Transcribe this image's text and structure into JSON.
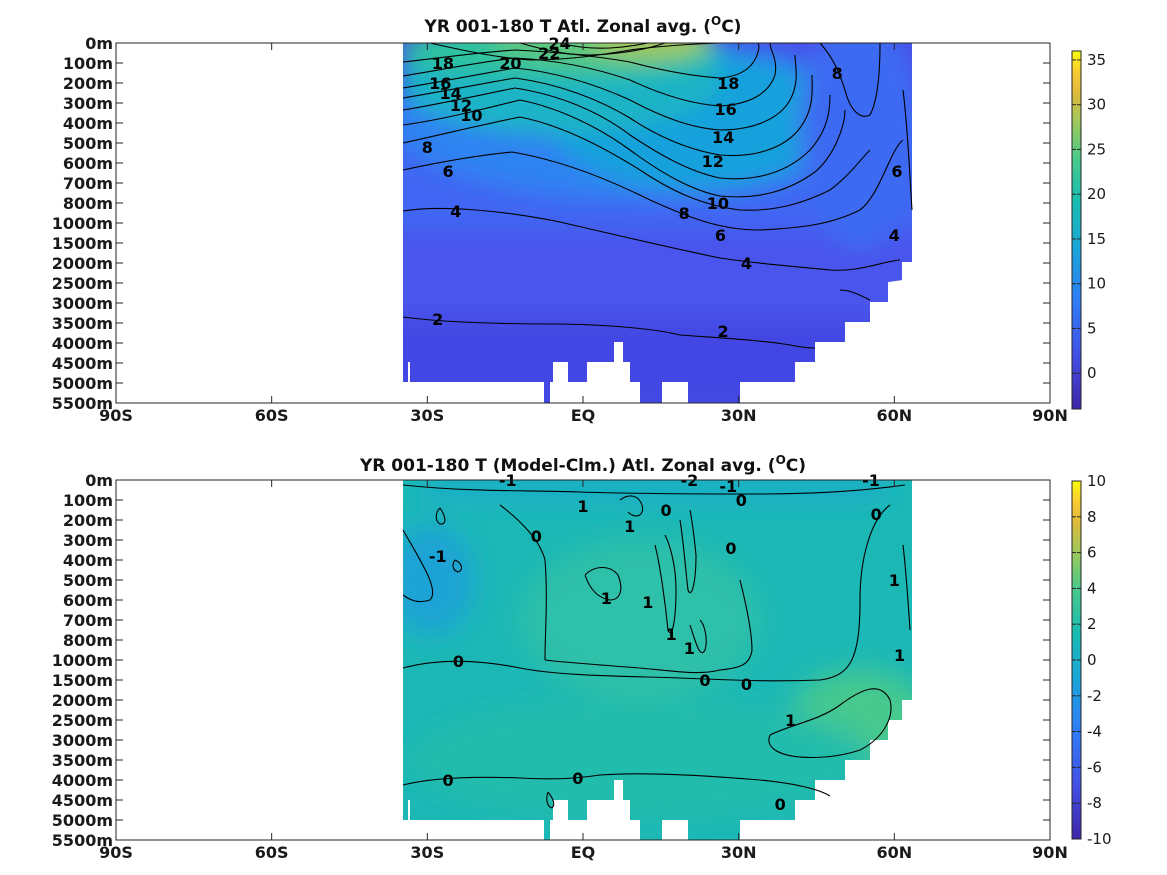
{
  "chart_data": [
    {
      "type": "heatmap",
      "title": "YR 001-180 T Atl. Zonal avg. (",
      "title_sup": "O",
      "title_end": "C)",
      "x_ticks": [
        "90S",
        "60S",
        "30S",
        "EQ",
        "30N",
        "60N",
        "90N"
      ],
      "x_values": [
        -90,
        -60,
        -30,
        0,
        30,
        60,
        90
      ],
      "xlim": [
        -90,
        90
      ],
      "y_ticks": [
        "0m",
        "100m",
        "200m",
        "300m",
        "400m",
        "500m",
        "600m",
        "700m",
        "800m",
        "1000m",
        "1500m",
        "2000m",
        "2500m",
        "3000m",
        "3500m",
        "4000m",
        "4500m",
        "5000m",
        "5500m"
      ],
      "y_scale": "nonlinear-depth",
      "colorbar": {
        "ticks": [
          "35",
          "30",
          "25",
          "20",
          "15",
          "10",
          "5",
          "0"
        ],
        "tick_values": [
          35,
          30,
          25,
          20,
          15,
          10,
          5,
          0
        ],
        "range": [
          -4,
          36
        ],
        "colormap": "parula"
      },
      "contour_labels": [
        {
          "text": "24",
          "lat": -4.5,
          "depth": "0m"
        },
        {
          "text": "22",
          "lat": -6.5,
          "depth": "50m"
        },
        {
          "text": "20",
          "lat": -14,
          "depth": "100m"
        },
        {
          "text": "18",
          "lat": -27,
          "depth": "100m"
        },
        {
          "text": "16",
          "lat": -27.5,
          "depth": "200m"
        },
        {
          "text": "14",
          "lat": -25.5,
          "depth": "250m"
        },
        {
          "text": "12",
          "lat": -23.5,
          "depth": "310m"
        },
        {
          "text": "10",
          "lat": -21.5,
          "depth": "360m"
        },
        {
          "text": "8",
          "lat": -30,
          "depth": "520m"
        },
        {
          "text": "6",
          "lat": -26,
          "depth": "640m"
        },
        {
          "text": "4",
          "lat": -24.5,
          "depth": "880m"
        },
        {
          "text": "2",
          "lat": -28,
          "depth": "3400m"
        },
        {
          "text": "18",
          "lat": 28,
          "depth": "200m"
        },
        {
          "text": "16",
          "lat": 27.5,
          "depth": "330m"
        },
        {
          "text": "14",
          "lat": 27,
          "depth": "470m"
        },
        {
          "text": "12",
          "lat": 25,
          "depth": "590m"
        },
        {
          "text": "10",
          "lat": 26,
          "depth": "800m"
        },
        {
          "text": "8",
          "lat": 19.5,
          "depth": "900m"
        },
        {
          "text": "6",
          "lat": 26.5,
          "depth": "1300m"
        },
        {
          "text": "4",
          "lat": 31.5,
          "depth": "2000m"
        },
        {
          "text": "2",
          "lat": 27,
          "depth": "3700m"
        },
        {
          "text": "8",
          "lat": 49,
          "depth": "150m"
        },
        {
          "text": "6",
          "lat": 60.5,
          "depth": "640m"
        },
        {
          "text": "4",
          "lat": 60,
          "depth": "1300m"
        }
      ]
    },
    {
      "type": "heatmap",
      "title": "YR 001-180 T (Model-Clm.) Atl. Zonal avg. (",
      "title_sup": "O",
      "title_end": "C)",
      "x_ticks": [
        "90S",
        "60S",
        "30S",
        "EQ",
        "30N",
        "60N",
        "90N"
      ],
      "x_values": [
        -90,
        -60,
        -30,
        0,
        30,
        60,
        90
      ],
      "xlim": [
        -90,
        90
      ],
      "y_ticks": [
        "0m",
        "100m",
        "200m",
        "300m",
        "400m",
        "500m",
        "600m",
        "700m",
        "800m",
        "1000m",
        "1500m",
        "2000m",
        "2500m",
        "3000m",
        "3500m",
        "4000m",
        "4500m",
        "5000m",
        "5500m"
      ],
      "y_scale": "nonlinear-depth",
      "colorbar": {
        "ticks": [
          "10",
          "8",
          "6",
          "4",
          "2",
          "0",
          "-2",
          "-4",
          "-6",
          "-8",
          "-10"
        ],
        "tick_values": [
          10,
          8,
          6,
          4,
          2,
          0,
          -2,
          -4,
          -6,
          -8,
          -10
        ],
        "range": [
          -10,
          10
        ],
        "colormap": "parula"
      },
      "contour_labels": [
        {
          "text": "-1",
          "lat": -14.5,
          "depth": "0m"
        },
        {
          "text": "-2",
          "lat": 20.5,
          "depth": "0m"
        },
        {
          "text": "-1",
          "lat": 28,
          "depth": "30m"
        },
        {
          "text": "-1",
          "lat": 55.5,
          "depth": "0m"
        },
        {
          "text": "0",
          "lat": 30.5,
          "depth": "100m"
        },
        {
          "text": "0",
          "lat": 56.5,
          "depth": "170m"
        },
        {
          "text": "1",
          "lat": 0,
          "depth": "130m"
        },
        {
          "text": "1",
          "lat": 9,
          "depth": "230m"
        },
        {
          "text": "0",
          "lat": 16,
          "depth": "150m"
        },
        {
          "text": "0",
          "lat": -9,
          "depth": "280m"
        },
        {
          "text": "0",
          "lat": 28.5,
          "depth": "340m"
        },
        {
          "text": "-1",
          "lat": -28,
          "depth": "380m"
        },
        {
          "text": "1",
          "lat": 4.5,
          "depth": "590m"
        },
        {
          "text": "1",
          "lat": 12.5,
          "depth": "610m"
        },
        {
          "text": "1",
          "lat": 17,
          "depth": "770m"
        },
        {
          "text": "1",
          "lat": 20.5,
          "depth": "880m"
        },
        {
          "text": "1",
          "lat": 60,
          "depth": "500m"
        },
        {
          "text": "1",
          "lat": 61,
          "depth": "950m"
        },
        {
          "text": "0",
          "lat": -24,
          "depth": "1020m"
        },
        {
          "text": "0",
          "lat": 23.5,
          "depth": "1500m"
        },
        {
          "text": "0",
          "lat": 31.5,
          "depth": "1600m"
        },
        {
          "text": "1",
          "lat": 40,
          "depth": "2500m"
        },
        {
          "text": "0",
          "lat": -26,
          "depth": "4000m"
        },
        {
          "text": "0",
          "lat": -1,
          "depth": "3950m"
        },
        {
          "text": "0",
          "lat": 38,
          "depth": "4600m"
        }
      ]
    }
  ]
}
